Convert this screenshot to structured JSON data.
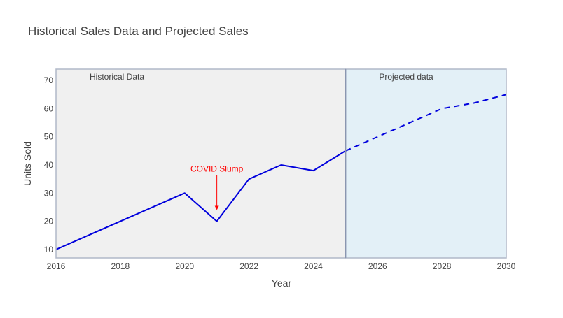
{
  "chart_data": {
    "type": "line",
    "title": "Historical Sales Data and Projected Sales",
    "xlabel": "Year",
    "ylabel": "Units Sold",
    "xlim": [
      2016,
      2030
    ],
    "ylim": [
      7,
      74
    ],
    "x_ticks": [
      2016,
      2018,
      2020,
      2022,
      2024,
      2026,
      2028,
      2030
    ],
    "y_ticks": [
      10,
      20,
      30,
      40,
      50,
      60,
      70
    ],
    "grid": false,
    "legend": "none",
    "series": [
      {
        "style": "solid",
        "color": "#0000dd",
        "x": [
          2016,
          2020,
          2021,
          2022,
          2023,
          2024,
          2025
        ],
        "y": [
          10,
          30,
          20,
          35,
          40,
          38,
          45
        ]
      },
      {
        "style": "dashed",
        "color": "#0000dd",
        "x": [
          2025,
          2026,
          2027,
          2028,
          2029,
          2030
        ],
        "y": [
          45,
          50,
          55,
          60,
          62,
          65
        ]
      }
    ],
    "regions": [
      {
        "label": "Historical Data",
        "x_start": 2016,
        "x_end": 2025,
        "fill": "#f0f0f0"
      },
      {
        "label": "Projected data",
        "x_start": 2025,
        "x_end": 2030,
        "fill": "#e3f0f7"
      }
    ],
    "annotations": [
      {
        "text": "COVID Slump",
        "x": 2021,
        "y": 24,
        "color": "#ff0000"
      }
    ],
    "colors": {
      "text": "#444444",
      "title": "#444444",
      "frame": "#b0b8c8",
      "divider": "#8a96b0",
      "line": "#0000dd",
      "annotation": "#ff0000"
    }
  }
}
